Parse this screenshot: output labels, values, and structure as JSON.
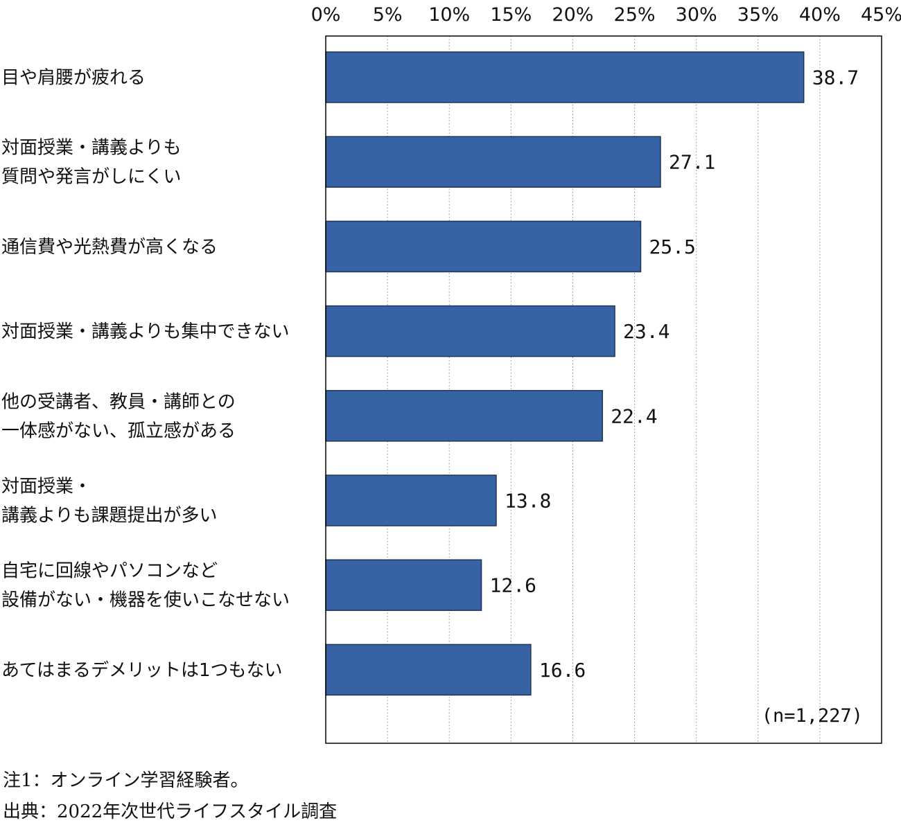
{
  "chart_data": {
    "type": "bar",
    "orientation": "horizontal",
    "title": "",
    "xlabel": "",
    "ylabel": "",
    "xlim": [
      0,
      45
    ],
    "x_ticks": [
      {
        "value": 0,
        "label": "0%"
      },
      {
        "value": 5,
        "label": "5%"
      },
      {
        "value": 10,
        "label": "10%"
      },
      {
        "value": 15,
        "label": "15%"
      },
      {
        "value": 20,
        "label": "20%"
      },
      {
        "value": 25,
        "label": "25%"
      },
      {
        "value": 30,
        "label": "30%"
      },
      {
        "value": 35,
        "label": "35%"
      },
      {
        "value": 40,
        "label": "40%"
      },
      {
        "value": 45,
        "label": "45%"
      }
    ],
    "x_axis_position": "top",
    "grid": "vertical dotted",
    "bar_color": "#3763a5",
    "bar_border_color": "#1e3557",
    "categories": [
      [
        "目や肩腰が疲れる"
      ],
      [
        "対面授業・講義よりも",
        "質問や発言がしにくい"
      ],
      [
        "通信費や光熱費が高くなる"
      ],
      [
        "対面授業・講義よりも集中できない"
      ],
      [
        "他の受講者、教員・講師との",
        "一体感がない、孤立感がある"
      ],
      [
        "対面授業・",
        "講義よりも課題提出が多い"
      ],
      [
        "自宅に回線やパソコンなど",
        "設備がない・機器を使いこなせない"
      ],
      [
        "あてはまるデメリットは1つもない"
      ]
    ],
    "values": [
      38.7,
      27.1,
      25.5,
      23.4,
      22.4,
      13.8,
      12.6,
      16.6
    ],
    "value_labels": [
      "38.7",
      "27.1",
      "25.5",
      "23.4",
      "22.4",
      "13.8",
      "12.6",
      "16.6"
    ],
    "annotation": "(n=1,227)"
  },
  "footnotes": {
    "note1": "注1：オンライン学習経験者。",
    "source": "出典：2022年次世代ライフスタイル調査"
  }
}
